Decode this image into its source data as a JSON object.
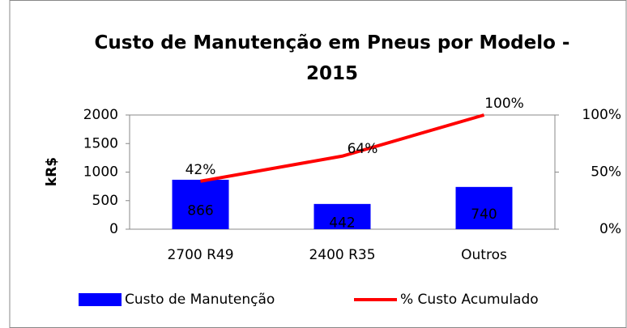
{
  "chart_data": {
    "type": "bar",
    "title": "Custo de Manutenção em Pneus por Modelo - 2015",
    "y_label": "kR$",
    "categories": [
      "2700 R49",
      "2400 R35",
      "Outros"
    ],
    "series": [
      {
        "name": "Custo de Manutenção",
        "type": "bar",
        "color": "#0000ff",
        "values": [
          866,
          442,
          740
        ],
        "value_labels": [
          "866",
          "442",
          "740"
        ]
      },
      {
        "name": "% Custo Acumulado",
        "type": "line",
        "axis": "y2",
        "color": "#ff0000",
        "values": [
          42,
          64,
          100
        ],
        "value_labels": [
          "42%",
          "64%",
          "100%"
        ]
      }
    ],
    "ylim": [
      0,
      2000
    ],
    "yticks": [
      0,
      500,
      1000,
      1500,
      2000
    ],
    "y2lim": [
      0,
      100
    ],
    "y2ticks": [
      {
        "value": 0,
        "label": "0%"
      },
      {
        "value": 50,
        "label": "50%"
      },
      {
        "value": 100,
        "label": "100%"
      }
    ],
    "legend": "bottom"
  }
}
